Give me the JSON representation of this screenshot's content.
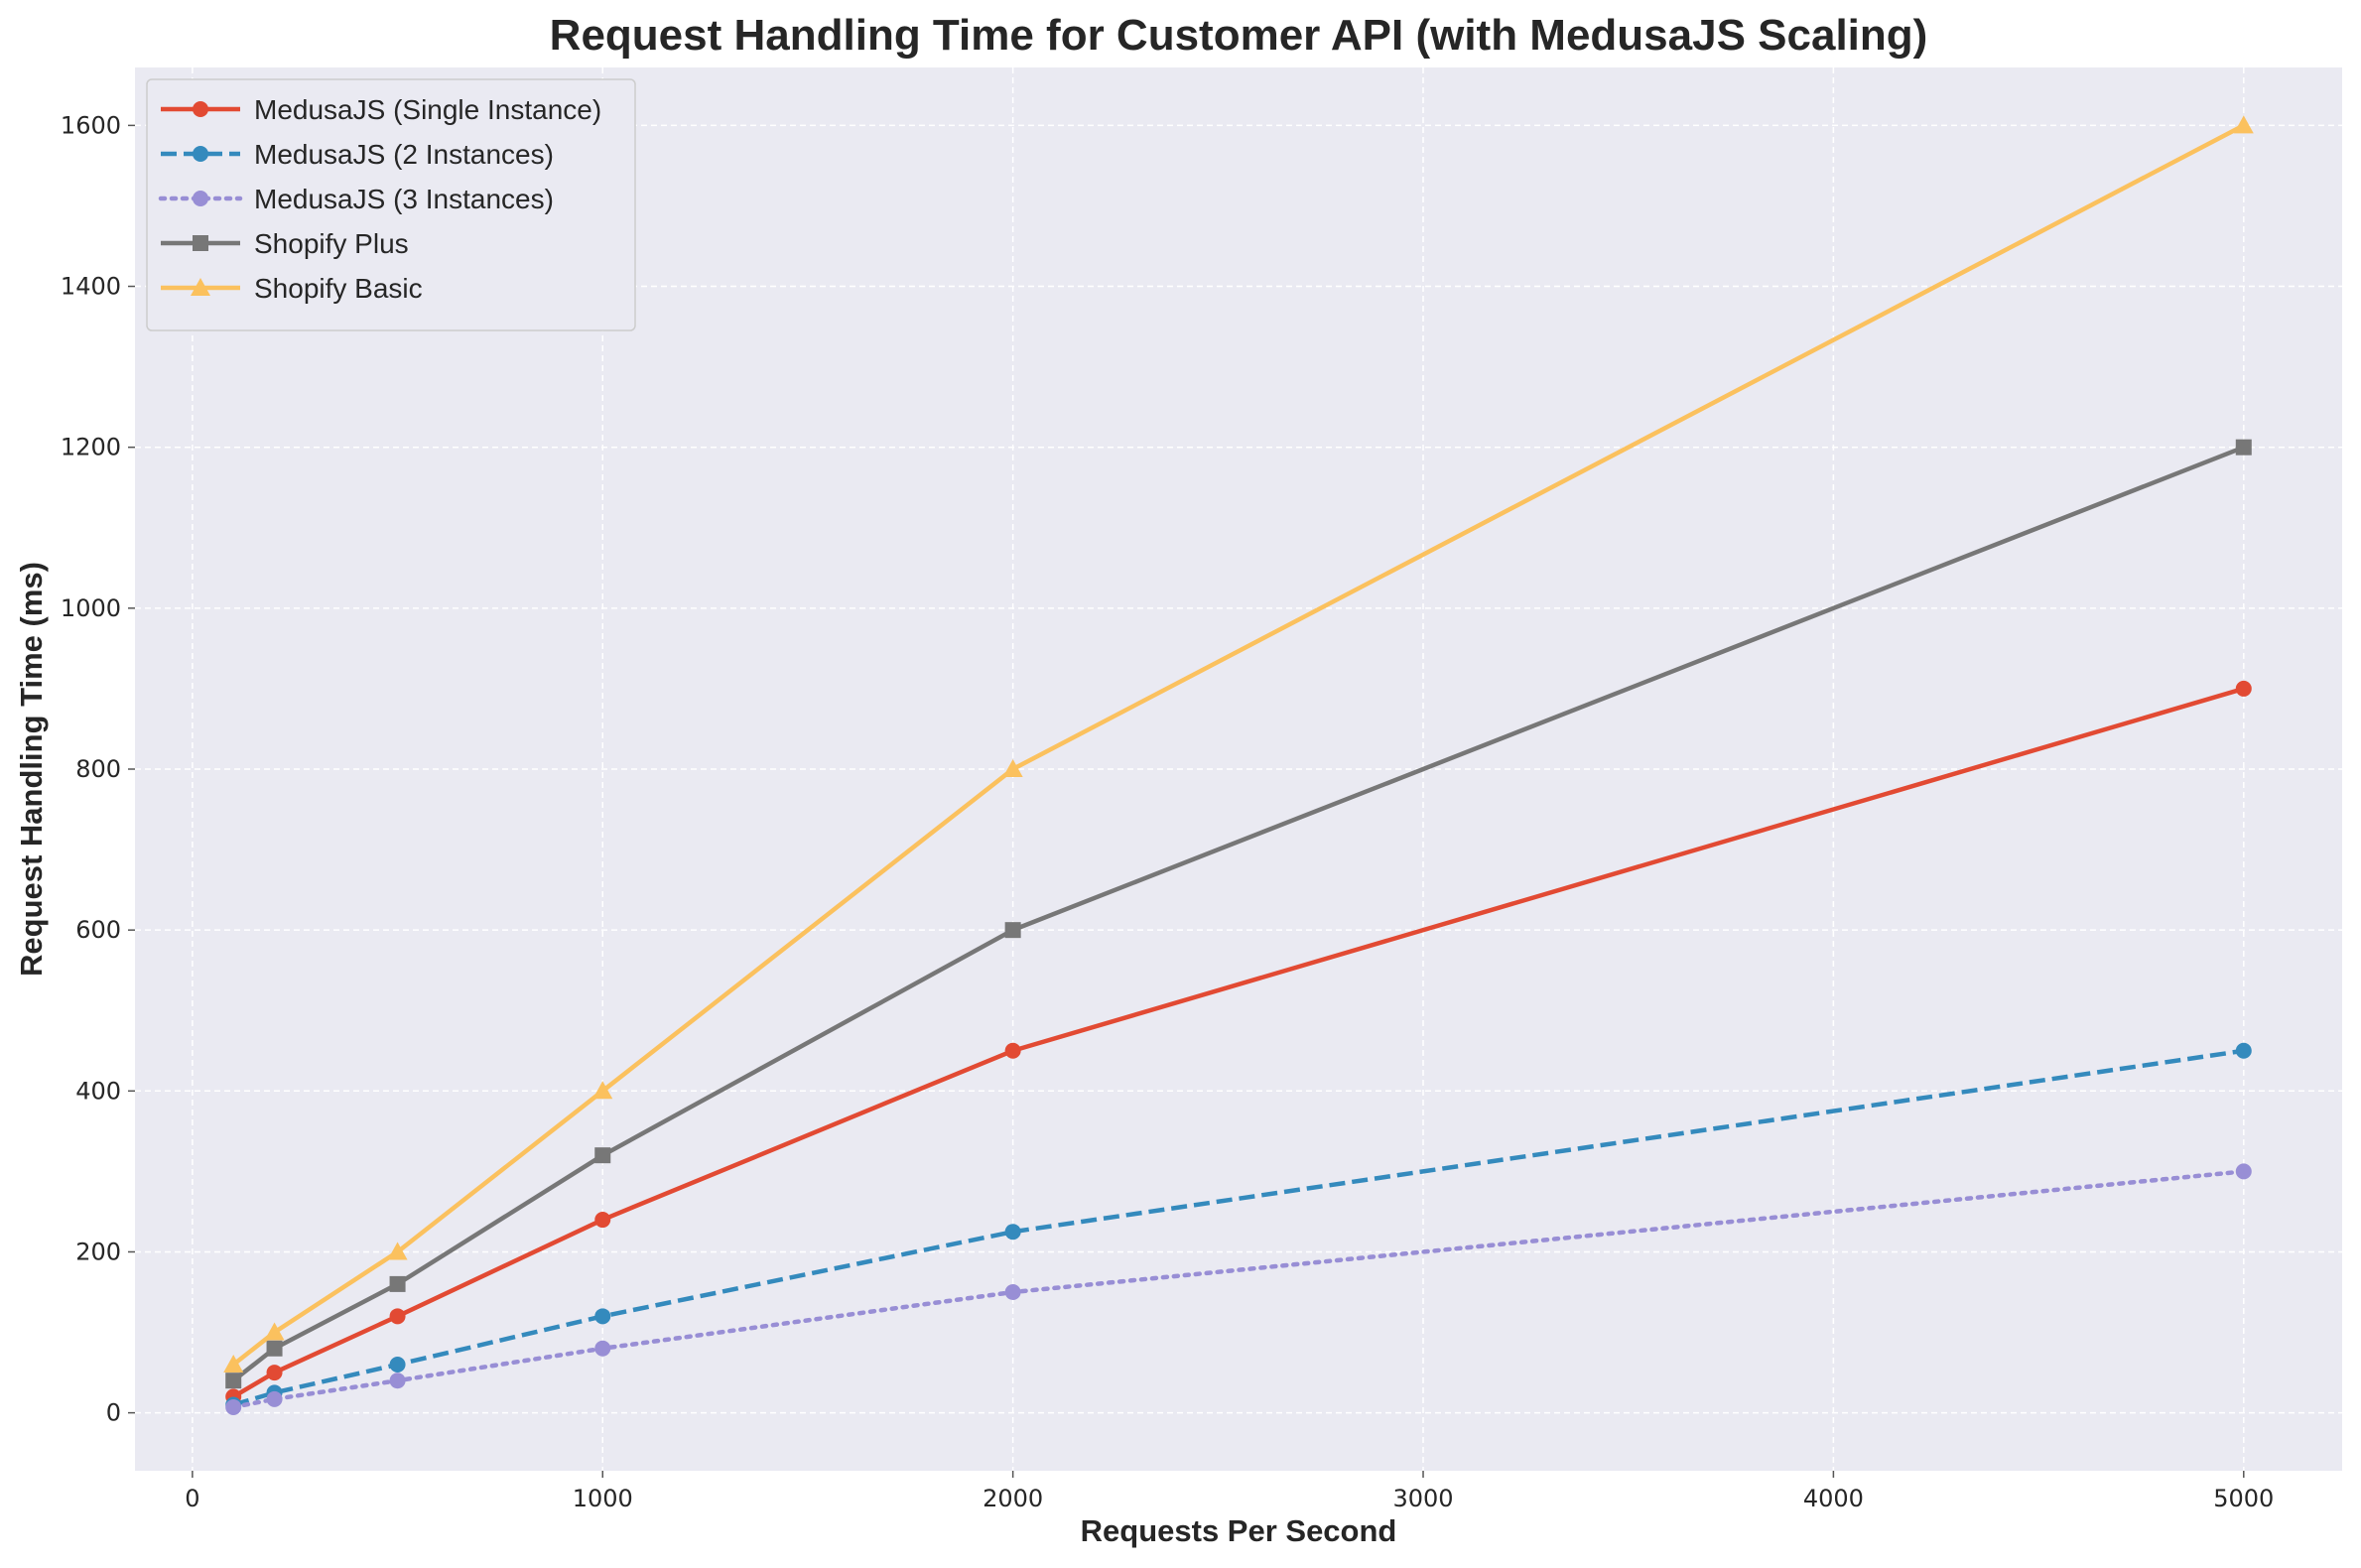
{
  "chart_data": {
    "type": "line",
    "title": "Request Handling Time for Customer API (with MedusaJS Scaling)",
    "xlabel": "Requests Per Second",
    "ylabel": "Request Handling Time (ms)",
    "x": [
      100,
      200,
      500,
      1000,
      2000,
      5000
    ],
    "xlim": [
      -140,
      5240
    ],
    "ylim": [
      -72,
      1672
    ],
    "xticks": [
      0,
      1000,
      2000,
      3000,
      4000,
      5000
    ],
    "yticks": [
      0,
      200,
      400,
      600,
      800,
      1000,
      1200,
      1400,
      1600
    ],
    "grid": true,
    "legend_position": "upper-left",
    "series": [
      {
        "name": "MedusaJS (Single Instance)",
        "values": [
          20,
          50,
          120,
          240,
          450,
          900
        ],
        "color": "#E24A33",
        "line_style": "solid",
        "marker": "circle"
      },
      {
        "name": "MedusaJS (2 Instances)",
        "values": [
          10,
          25,
          60,
          120,
          225,
          450
        ],
        "color": "#348ABD",
        "line_style": "dashed",
        "marker": "circle"
      },
      {
        "name": "MedusaJS (3 Instances)",
        "values": [
          7,
          17,
          40,
          80,
          150,
          300
        ],
        "color": "#988ED5",
        "line_style": "dotted",
        "marker": "circle"
      },
      {
        "name": "Shopify Plus",
        "values": [
          40,
          80,
          160,
          320,
          600,
          1200
        ],
        "color": "#777777",
        "line_style": "solid",
        "marker": "square"
      },
      {
        "name": "Shopify Basic",
        "values": [
          60,
          100,
          200,
          400,
          800,
          1600
        ],
        "color": "#FBC15E",
        "line_style": "solid",
        "marker": "triangle"
      }
    ]
  }
}
